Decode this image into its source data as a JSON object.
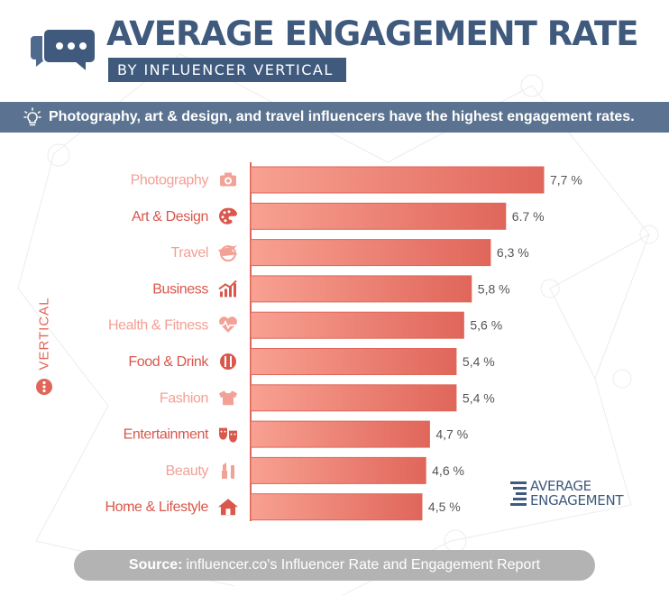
{
  "header": {
    "title": "AVERAGE ENGAGEMENT RATE",
    "subtitle": "BY INFLUENCER VERTICAL",
    "icon": "chat-bubbles-icon"
  },
  "banner": {
    "icon": "lightbulb-icon",
    "text": "Photography, art & design, and travel influencers have the highest engagement rates."
  },
  "axis": {
    "label": "VERTICAL"
  },
  "logo": {
    "line1": "AVERAGE",
    "line2": "ENGAGEMENT"
  },
  "source": {
    "label": "Source:",
    "text": "influencer.co's Influencer Rate and Engagement Report"
  },
  "colors": {
    "title": "#3f5a7d",
    "banner": "#5b7390",
    "bar_light": "#f8a192",
    "bar_dark": "#e0665a",
    "label_light": "#f3a096",
    "label_dark": "#d9574b"
  },
  "chart_data": {
    "type": "bar",
    "orientation": "horizontal",
    "categories": [
      "Photography",
      "Art & Design",
      "Travel",
      "Business",
      "Health & Fitness",
      "Food & Drink",
      "Fashion",
      "Entertainment",
      "Beauty",
      "Home & Lifestyle"
    ],
    "values": [
      7.7,
      6.7,
      6.3,
      5.8,
      5.6,
      5.4,
      5.4,
      4.7,
      4.6,
      4.5
    ],
    "value_labels": [
      "7,7 %",
      "6.7 %",
      "6,3 %",
      "5,8 %",
      "5,6 %",
      "5,4 %",
      "5,4 %",
      "4,7 %",
      "4,6 %",
      "4,5 %"
    ],
    "icons": [
      "camera-icon",
      "palette-icon",
      "plane-globe-icon",
      "trend-chart-icon",
      "heartbeat-icon",
      "food-icon",
      "tshirt-icon",
      "theater-masks-icon",
      "lipstick-icon",
      "house-icon"
    ],
    "label_tones": [
      "light",
      "dark",
      "light",
      "dark",
      "light",
      "dark",
      "light",
      "dark",
      "light",
      "dark"
    ],
    "xlim": [
      0,
      7.7
    ],
    "ylabel": "VERTICAL",
    "grid": false,
    "legend": "none"
  }
}
